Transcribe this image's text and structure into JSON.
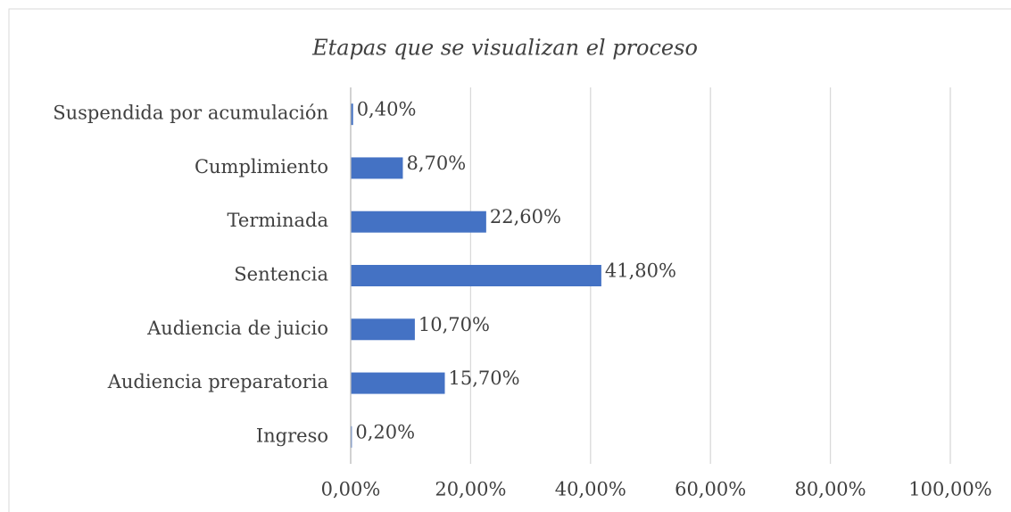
{
  "chart_data": {
    "type": "barh",
    "title": "Etapas que se visualizan el proceso",
    "categories": [
      "Suspendida por acumulación",
      "Cumplimiento",
      "Terminada",
      "Sentencia",
      "Audiencia de juicio",
      "Audiencia preparatoria",
      "Ingreso"
    ],
    "values": [
      0.4,
      8.7,
      22.6,
      41.8,
      10.7,
      15.7,
      0.2
    ],
    "value_labels": [
      "0,40%",
      "8,70%",
      "22,60%",
      "41,80%",
      "10,70%",
      "15,70%",
      "0,20%"
    ],
    "color": "#4472c4",
    "xlim": [
      0,
      100
    ],
    "xticks": [
      {
        "value": 0,
        "label": "0,00%"
      },
      {
        "value": 20,
        "label": "20,00%"
      },
      {
        "value": 40,
        "label": "40,00%"
      },
      {
        "value": 60,
        "label": "60,00%"
      },
      {
        "value": 80,
        "label": "80,00%"
      },
      {
        "value": 100,
        "label": "100,00%"
      }
    ],
    "grid": true
  }
}
